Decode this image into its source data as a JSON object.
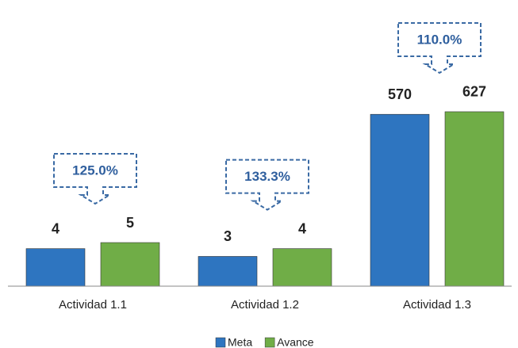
{
  "chart_data": {
    "type": "bar",
    "categories": [
      "Actividad 1.1",
      "Actividad 1.2",
      "Actividad 1.3"
    ],
    "series": [
      {
        "name": "Meta",
        "color": "#2e75c0",
        "values": [
          4,
          3,
          570
        ]
      },
      {
        "name": "Avance",
        "color": "#70ad47",
        "values": [
          5,
          4,
          627
        ]
      }
    ],
    "callouts": [
      "125.0%",
      "133.3%",
      "110.0%"
    ],
    "log_scale": true,
    "ylim": [
      1,
      1000
    ],
    "legend": "bottom"
  }
}
